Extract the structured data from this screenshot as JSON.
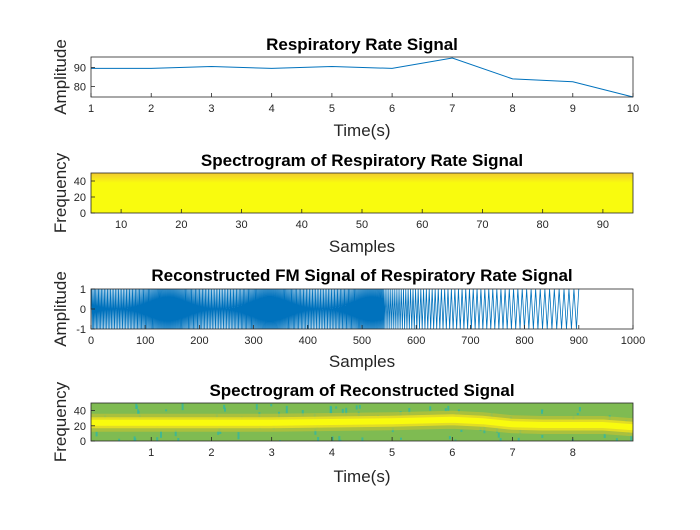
{
  "chart_data": [
    {
      "type": "line",
      "title": "Respiratory Rate Signal",
      "xlabel": "Time(s)",
      "ylabel": "Amplitude",
      "x": [
        1,
        2,
        3,
        4,
        5,
        6,
        7,
        8,
        9,
        10
      ],
      "series": [
        {
          "values": [
            89.5,
            89.5,
            90.5,
            89.5,
            90.5,
            89.5,
            95,
            84,
            82.5,
            74.5
          ]
        }
      ],
      "xlim": [
        1,
        10
      ],
      "ylim": [
        74.5,
        95.5
      ],
      "xticks": [
        1,
        2,
        3,
        4,
        5,
        6,
        7,
        8,
        9,
        10
      ],
      "yticks": [
        80,
        90
      ],
      "color": "#0072BD",
      "grid": false
    },
    {
      "type": "heatmap",
      "title": "Spectrogram of Respiratory Rate Signal",
      "xlabel": "Samples",
      "ylabel": "Frequency",
      "xlim": [
        5,
        95
      ],
      "ylim": [
        0,
        50
      ],
      "xticks": [
        10,
        20,
        30,
        40,
        50,
        60,
        70,
        80,
        90
      ],
      "yticks": [
        0,
        20,
        40
      ],
      "colormap": "parula",
      "colors": {
        "high": "#F9FB0E",
        "edge": "#F2C931"
      }
    },
    {
      "type": "line",
      "title": "Reconstructed FM Signal of Respiratory Rate Signal",
      "xlabel": "Samples",
      "ylabel": "Amplitude",
      "xlim": [
        0,
        1000
      ],
      "ylim": [
        -1,
        1
      ],
      "signal_end": 900,
      "xticks": [
        0,
        100,
        200,
        300,
        400,
        500,
        600,
        700,
        800,
        900,
        1000
      ],
      "yticks": [
        -1,
        0,
        1
      ],
      "color": "#0072BD"
    },
    {
      "type": "heatmap",
      "title": "Spectrogram of Reconstructed Signal",
      "xlabel": "Time(s)",
      "ylabel": "Frequency",
      "xlim": [
        0,
        9
      ],
      "ylim": [
        0,
        50
      ],
      "xticks": [
        1,
        2,
        3,
        4,
        5,
        6,
        7,
        8
      ],
      "yticks": [
        0,
        20,
        40
      ],
      "colormap": "parula",
      "ridge": {
        "t": [
          0,
          1,
          2,
          3,
          4,
          5,
          5.5,
          6,
          6.5,
          7,
          7.5,
          8,
          8.5,
          9
        ],
        "f": [
          24,
          24,
          24,
          24,
          25,
          26,
          27,
          28,
          26,
          22,
          21,
          21,
          21,
          18
        ]
      },
      "colors": {
        "background": "#7FBB52",
        "mid": "#B9C237",
        "peak": "#F9FB0E",
        "speckle": "#33B7A0"
      }
    }
  ]
}
